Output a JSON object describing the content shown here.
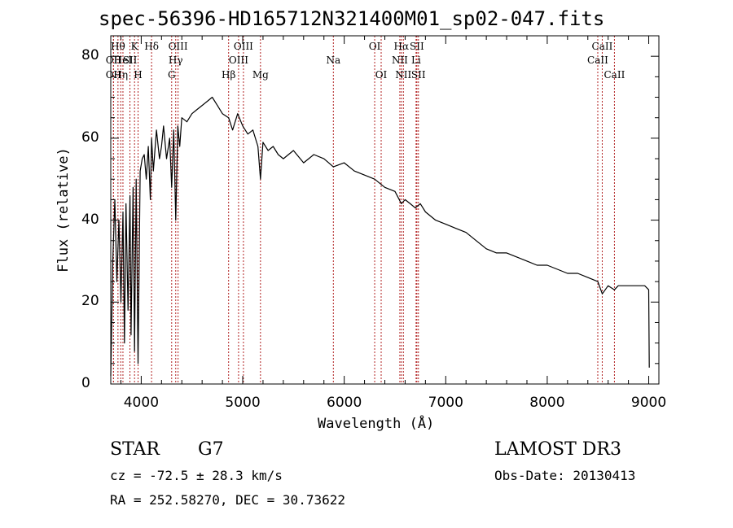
{
  "chart_data": {
    "type": "line",
    "title": "spec-56396-HD165712N321400M01_sp02-047.fits",
    "xlabel": "Wavelength (Å)",
    "ylabel": "Flux (relative)",
    "xlim": [
      3700,
      9100
    ],
    "ylim": [
      0,
      85
    ],
    "xticks": [
      4000,
      5000,
      6000,
      7000,
      8000,
      9000
    ],
    "yticks": [
      0,
      20,
      40,
      60,
      80
    ],
    "series": [
      {
        "name": "flux",
        "x": [
          3700,
          3720,
          3740,
          3760,
          3780,
          3800,
          3820,
          3835,
          3850,
          3870,
          3889,
          3900,
          3920,
          3934,
          3950,
          3969,
          3990,
          4010,
          4030,
          4050,
          4070,
          4090,
          4102,
          4120,
          4150,
          4180,
          4200,
          4220,
          4250,
          4280,
          4300,
          4320,
          4340,
          4360,
          4380,
          4400,
          4450,
          4500,
          4550,
          4600,
          4650,
          4700,
          4750,
          4800,
          4861,
          4900,
          4950,
          5000,
          5050,
          5100,
          5150,
          5175,
          5200,
          5250,
          5300,
          5350,
          5400,
          5500,
          5600,
          5700,
          5800,
          5893,
          6000,
          6100,
          6200,
          6300,
          6400,
          6500,
          6563,
          6600,
          6650,
          6700,
          6750,
          6800,
          6900,
          7000,
          7100,
          7200,
          7300,
          7400,
          7500,
          7600,
          7700,
          7800,
          7900,
          8000,
          8100,
          8200,
          8300,
          8400,
          8498,
          8542,
          8600,
          8662,
          8700,
          8800,
          8900,
          8960,
          9000,
          9005
        ],
        "values": [
          2,
          30,
          45,
          25,
          40,
          20,
          42,
          10,
          44,
          18,
          46,
          12,
          48,
          8,
          50,
          5,
          52,
          55,
          56,
          50,
          58,
          45,
          60,
          52,
          62,
          55,
          58,
          63,
          55,
          60,
          48,
          62,
          40,
          63,
          58,
          65,
          64,
          66,
          67,
          68,
          69,
          70,
          68,
          66,
          65,
          62,
          66,
          63,
          61,
          62,
          58,
          50,
          59,
          57,
          58,
          56,
          55,
          57,
          54,
          56,
          55,
          53,
          54,
          52,
          51,
          50,
          48,
          47,
          44,
          45,
          44,
          43,
          44,
          42,
          40,
          39,
          38,
          37,
          35,
          33,
          32,
          32,
          31,
          30,
          29,
          29,
          28,
          27,
          27,
          26,
          25,
          22,
          24,
          23,
          24,
          24,
          24,
          24,
          23,
          4
        ]
      }
    ],
    "lines": [
      {
        "x": 3727,
        "label": "OII",
        "row": 2
      },
      {
        "x": 3727,
        "label": "OII",
        "row": 3
      },
      {
        "x": 3771,
        "label": "Hθ",
        "row": 1
      },
      {
        "x": 3798,
        "label": "Hη",
        "row": 3
      },
      {
        "x": 3820,
        "label": "HeI",
        "row": 2
      },
      {
        "x": 3889,
        "label": "SII",
        "row": 2
      },
      {
        "x": 3934,
        "label": "K",
        "row": 1
      },
      {
        "x": 3969,
        "label": "H",
        "row": 3
      },
      {
        "x": 4102,
        "label": "Hδ",
        "row": 1
      },
      {
        "x": 4300,
        "label": "G",
        "row": 3
      },
      {
        "x": 4340,
        "label": "Hγ",
        "row": 2
      },
      {
        "x": 4363,
        "label": "OIII",
        "row": 1
      },
      {
        "x": 4861,
        "label": "Hβ",
        "row": 3
      },
      {
        "x": 4959,
        "label": "OIII",
        "row": 2
      },
      {
        "x": 5007,
        "label": "OIII",
        "row": 1
      },
      {
        "x": 5175,
        "label": "Mg",
        "row": 3
      },
      {
        "x": 5893,
        "label": "Na",
        "row": 2
      },
      {
        "x": 6300,
        "label": "OI",
        "row": 1
      },
      {
        "x": 6364,
        "label": "OI",
        "row": 3
      },
      {
        "x": 6548,
        "label": "NII",
        "row": 2
      },
      {
        "x": 6563,
        "label": "Hα",
        "row": 1
      },
      {
        "x": 6583,
        "label": "NII",
        "row": 3
      },
      {
        "x": 6708,
        "label": "Li",
        "row": 2
      },
      {
        "x": 6716,
        "label": "SII",
        "row": 1
      },
      {
        "x": 6731,
        "label": "SII",
        "row": 3
      },
      {
        "x": 8498,
        "label": "CaII",
        "row": 2
      },
      {
        "x": 8542,
        "label": "CaII",
        "row": 1
      },
      {
        "x": 8662,
        "label": "CaII",
        "row": 3
      }
    ]
  },
  "info": {
    "class": "STAR",
    "subclass": "G7",
    "survey": "LAMOST DR3",
    "cz": "cz = -72.5 ± 28.3 km/s",
    "obs_date": "Obs-Date: 20130413",
    "coords": "RA = 252.58270, DEC =  30.73622"
  },
  "colors": {
    "spectrum": "#000000",
    "line_markers": "#b22222"
  }
}
